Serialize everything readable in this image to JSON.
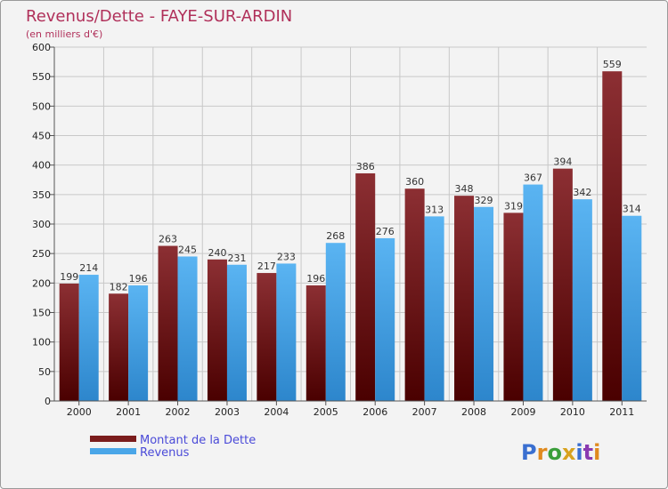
{
  "chart_data": {
    "type": "bar",
    "title": "Revenus/Dette - FAYE-SUR-ARDIN",
    "subtitle": "(en milliers d'€)",
    "categories": [
      "2000",
      "2001",
      "2002",
      "2003",
      "2004",
      "2005",
      "2006",
      "2007",
      "2008",
      "2009",
      "2010",
      "2011"
    ],
    "series": [
      {
        "name": "Montant de la Dette",
        "color": "#7a1c1c",
        "values": [
          199,
          182,
          263,
          240,
          217,
          196,
          386,
          360,
          348,
          319,
          394,
          559
        ]
      },
      {
        "name": "Revenus",
        "color": "#4aa6e8",
        "values": [
          214,
          196,
          245,
          231,
          233,
          268,
          276,
          313,
          329,
          367,
          342,
          314
        ]
      }
    ],
    "ylim": [
      0,
      600
    ],
    "yticks": [
      0,
      50,
      100,
      150,
      200,
      250,
      300,
      350,
      400,
      450,
      500,
      550,
      600
    ],
    "grid": true,
    "legend": "bottom-left"
  },
  "branding": {
    "logo_letters": [
      {
        "ch": "P",
        "color": "#3a6fd0"
      },
      {
        "ch": "r",
        "color": "#e08a1e"
      },
      {
        "ch": "o",
        "color": "#3a9e3a"
      },
      {
        "ch": "x",
        "color": "#d8a21e"
      },
      {
        "ch": "i",
        "color": "#3a6fd0"
      },
      {
        "ch": "t",
        "color": "#8a3ab0"
      },
      {
        "ch": "i",
        "color": "#e08a1e"
      }
    ]
  }
}
